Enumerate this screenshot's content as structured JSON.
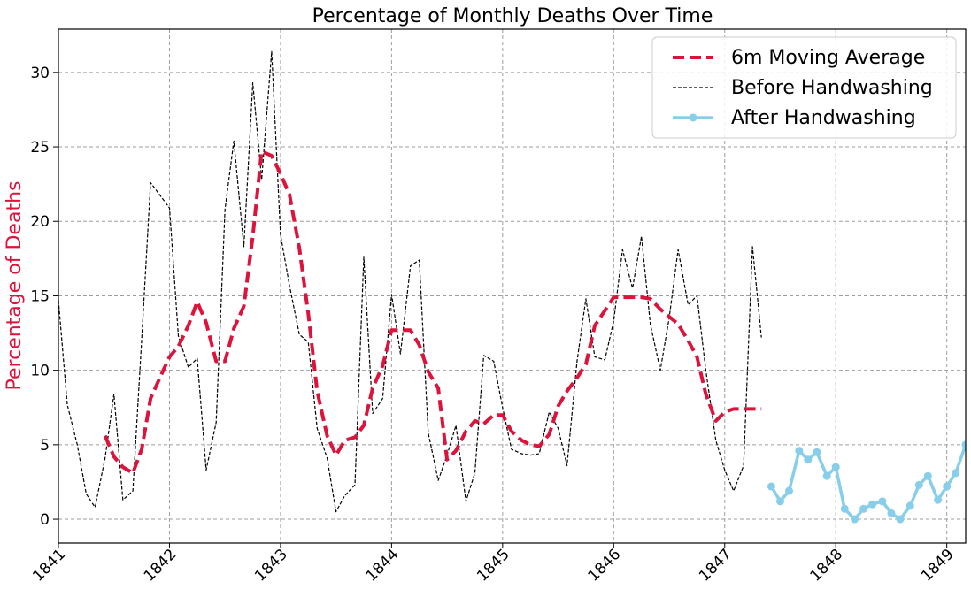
{
  "chart_data": {
    "type": "line",
    "title": "Percentage of Monthly Deaths Over Time",
    "xlabel": "",
    "ylabel": "Percentage of Deaths",
    "ylabel_color": "#dc143c",
    "xlim": [
      1841.0,
      1849.17
    ],
    "ylim": [
      -1.6,
      32.9
    ],
    "x_ticks": [
      1841,
      1842,
      1843,
      1844,
      1845,
      1846,
      1847,
      1848,
      1849
    ],
    "x_tick_labels": [
      "1841",
      "1842",
      "1843",
      "1844",
      "1845",
      "1846",
      "1847",
      "1848",
      "1849"
    ],
    "y_ticks": [
      0,
      5,
      10,
      15,
      20,
      25,
      30
    ],
    "y_tick_labels": [
      "0",
      "5",
      "10",
      "15",
      "20",
      "25",
      "30"
    ],
    "grid": true,
    "legend_position": "top-right",
    "series": [
      {
        "name": "6m Moving Average",
        "style": "dashed-thick",
        "color": "#dc143c",
        "x": [
          1841.42,
          1841.5,
          1841.58,
          1841.67,
          1841.75,
          1841.83,
          1841.92,
          1842.0,
          1842.08,
          1842.17,
          1842.25,
          1842.33,
          1842.42,
          1842.5,
          1842.58,
          1842.67,
          1842.75,
          1842.83,
          1842.92,
          1843.0,
          1843.08,
          1843.17,
          1843.25,
          1843.33,
          1843.42,
          1843.5,
          1843.58,
          1843.67,
          1843.75,
          1843.83,
          1843.92,
          1844.0,
          1844.08,
          1844.17,
          1844.25,
          1844.33,
          1844.42,
          1844.5,
          1844.58,
          1844.67,
          1844.75,
          1844.83,
          1844.92,
          1845.0,
          1845.08,
          1845.17,
          1845.25,
          1845.33,
          1845.42,
          1845.5,
          1845.58,
          1845.67,
          1845.75,
          1845.83,
          1845.92,
          1846.0,
          1846.08,
          1846.17,
          1846.25,
          1846.33,
          1846.42,
          1846.5,
          1846.58,
          1846.67,
          1846.75,
          1846.83,
          1846.92,
          1847.0,
          1847.08,
          1847.17,
          1847.25,
          1847.33
        ],
        "y": [
          5.6,
          4.2,
          3.5,
          3.1,
          4.7,
          8.1,
          9.6,
          10.9,
          11.6,
          13.0,
          14.6,
          13.2,
          10.6,
          10.6,
          12.8,
          14.3,
          19.0,
          24.7,
          24.4,
          23.2,
          21.8,
          18.2,
          13.8,
          8.6,
          5.6,
          4.3,
          5.3,
          5.5,
          6.3,
          8.8,
          10.3,
          12.7,
          12.7,
          12.7,
          11.7,
          9.9,
          8.8,
          4.0,
          4.6,
          5.9,
          6.6,
          6.4,
          7.0,
          7.0,
          5.9,
          5.3,
          5.0,
          4.9,
          5.7,
          7.6,
          8.6,
          9.5,
          10.4,
          13.0,
          14.0,
          14.9,
          14.9,
          14.9,
          14.9,
          14.8,
          14.1,
          13.6,
          13.1,
          12.0,
          10.9,
          8.4,
          6.6,
          7.2,
          7.4,
          7.4,
          7.4,
          7.4
        ]
      },
      {
        "name": "Before Handwashing",
        "style": "dashed-thin",
        "color": "#000000",
        "x": [
          1841.0,
          1841.08,
          1841.17,
          1841.25,
          1841.33,
          1841.42,
          1841.5,
          1841.58,
          1841.67,
          1841.75,
          1841.83,
          1841.92,
          1842.0,
          1842.08,
          1842.17,
          1842.25,
          1842.33,
          1842.42,
          1842.5,
          1842.58,
          1842.67,
          1842.75,
          1842.83,
          1842.92,
          1843.0,
          1843.08,
          1843.17,
          1843.25,
          1843.33,
          1843.42,
          1843.5,
          1843.58,
          1843.67,
          1843.75,
          1843.83,
          1843.92,
          1844.0,
          1844.08,
          1844.17,
          1844.25,
          1844.33,
          1844.42,
          1844.5,
          1844.58,
          1844.67,
          1844.75,
          1844.83,
          1844.92,
          1845.0,
          1845.08,
          1845.17,
          1845.25,
          1845.33,
          1845.42,
          1845.5,
          1845.58,
          1845.67,
          1845.75,
          1845.83,
          1845.92,
          1846.0,
          1846.08,
          1846.17,
          1846.25,
          1846.33,
          1846.42,
          1846.5,
          1846.58,
          1846.67,
          1846.75,
          1846.83,
          1846.92,
          1847.0,
          1847.08,
          1847.17,
          1847.25,
          1847.33
        ],
        "y": [
          14.7,
          7.7,
          5.0,
          1.7,
          0.8,
          4.1,
          8.4,
          1.3,
          1.9,
          12.1,
          22.6,
          21.7,
          20.9,
          12.3,
          10.2,
          10.8,
          3.3,
          6.5,
          20.8,
          25.4,
          18.3,
          29.3,
          22.8,
          31.4,
          19.1,
          15.7,
          12.4,
          11.9,
          6.1,
          4.1,
          0.5,
          1.6,
          2.3,
          17.6,
          7.1,
          8.1,
          15.1,
          11.1,
          17.0,
          17.4,
          5.8,
          2.6,
          4.3,
          6.3,
          1.2,
          3.1,
          11.0,
          10.6,
          7.5,
          4.7,
          4.4,
          4.3,
          4.4,
          7.2,
          6.1,
          3.6,
          10.6,
          14.8,
          10.9,
          10.7,
          13.3,
          18.1,
          15.5,
          19.0,
          13.1,
          10.0,
          13.5,
          18.1,
          14.4,
          15.0,
          10.0,
          5.3,
          3.3,
          1.9,
          3.6,
          18.3,
          12.2
        ]
      },
      {
        "name": "After Handwashing",
        "style": "solid-markers",
        "color": "#87ceeb",
        "x": [
          1847.42,
          1847.5,
          1847.58,
          1847.67,
          1847.75,
          1847.83,
          1847.92,
          1848.0,
          1848.08,
          1848.17,
          1848.25,
          1848.33,
          1848.42,
          1848.5,
          1848.58,
          1848.67,
          1848.75,
          1848.83,
          1848.92,
          1849.0,
          1849.08,
          1849.17
        ],
        "y": [
          2.2,
          1.2,
          1.9,
          4.6,
          4.0,
          4.5,
          2.9,
          3.5,
          0.7,
          0.0,
          0.7,
          1.0,
          1.2,
          0.4,
          0.0,
          0.9,
          2.3,
          2.9,
          1.3,
          2.2,
          3.1,
          5.0
        ]
      }
    ]
  }
}
